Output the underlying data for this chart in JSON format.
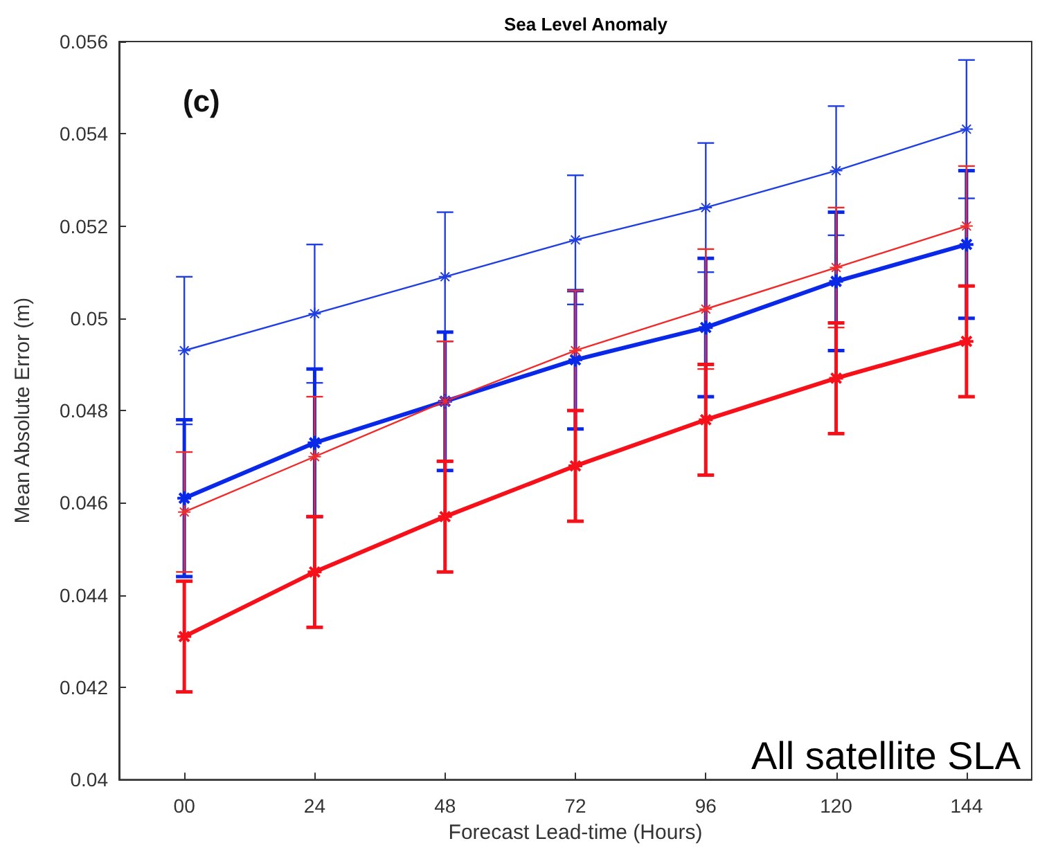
{
  "chart_data": {
    "type": "line",
    "title": "Sea Level Anomaly",
    "xlabel": "Forecast Lead-time (Hours)",
    "ylabel": "Mean Absolute Error (m)",
    "annotations": [
      "(c)",
      "All satellite SLA"
    ],
    "categories": [
      "00",
      "24",
      "48",
      "72",
      "96",
      "120",
      "144"
    ],
    "ylim": [
      0.04,
      0.056
    ],
    "yticks": [
      0.04,
      0.042,
      0.044,
      0.046,
      0.048,
      0.05,
      0.052,
      0.054,
      0.056
    ],
    "grid": false,
    "marker": "cross",
    "line_style": "solid",
    "series": [
      {
        "color": "#1f3fe0",
        "values": [
          0.0493,
          0.0501,
          0.0509,
          0.0517,
          0.0524,
          0.0532,
          0.0541
        ],
        "errors": [
          0.0016,
          0.0015,
          0.0014,
          0.0014,
          0.0014,
          0.0014,
          0.0015
        ]
      },
      {
        "color": "#0a28e8",
        "values": [
          0.0461,
          0.0473,
          0.0482,
          0.0491,
          0.0498,
          0.0508,
          0.0516
        ],
        "errors": [
          0.0017,
          0.0016,
          0.0015,
          0.0015,
          0.0015,
          0.0015,
          0.0016
        ]
      },
      {
        "color": "#f02a2a",
        "values": [
          0.0458,
          0.047,
          0.0482,
          0.0493,
          0.0502,
          0.0511,
          0.052
        ],
        "errors": [
          0.0013,
          0.0013,
          0.0013,
          0.0013,
          0.0013,
          0.0013,
          0.0013
        ]
      },
      {
        "color": "#f5101a",
        "values": [
          0.0431,
          0.0445,
          0.0457,
          0.0468,
          0.0478,
          0.0487,
          0.0495
        ],
        "errors": [
          0.0012,
          0.0012,
          0.0012,
          0.0012,
          0.0012,
          0.0012,
          0.0012
        ]
      }
    ]
  }
}
